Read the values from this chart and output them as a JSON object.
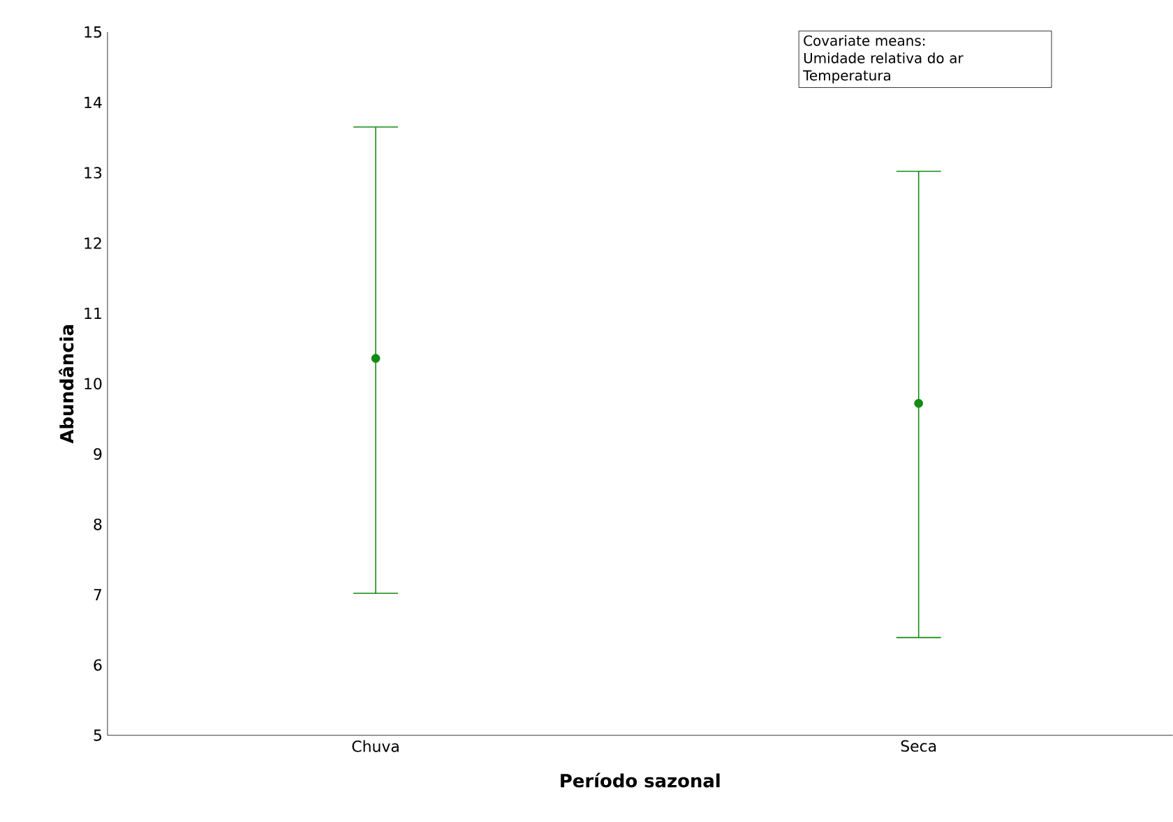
{
  "chart_data": {
    "type": "scatter",
    "xlabel": "Período sazonal",
    "ylabel": "Abundância",
    "categories": [
      "Chuva",
      "Seca"
    ],
    "series": [
      {
        "color": "#138a13",
        "values": [
          10.36,
          9.72
        ],
        "errors": [
          [
            7.02,
            13.65
          ],
          [
            6.39,
            13.02
          ]
        ]
      }
    ],
    "ylim": [
      5,
      15
    ],
    "yticks": [
      5,
      6,
      7,
      8,
      9,
      10,
      11,
      12,
      13,
      14,
      15
    ],
    "marker": "circle",
    "grid": false,
    "annotations": [
      "Covariate means:",
      "Umidade relativa do ar",
      "Temperatura"
    ]
  }
}
